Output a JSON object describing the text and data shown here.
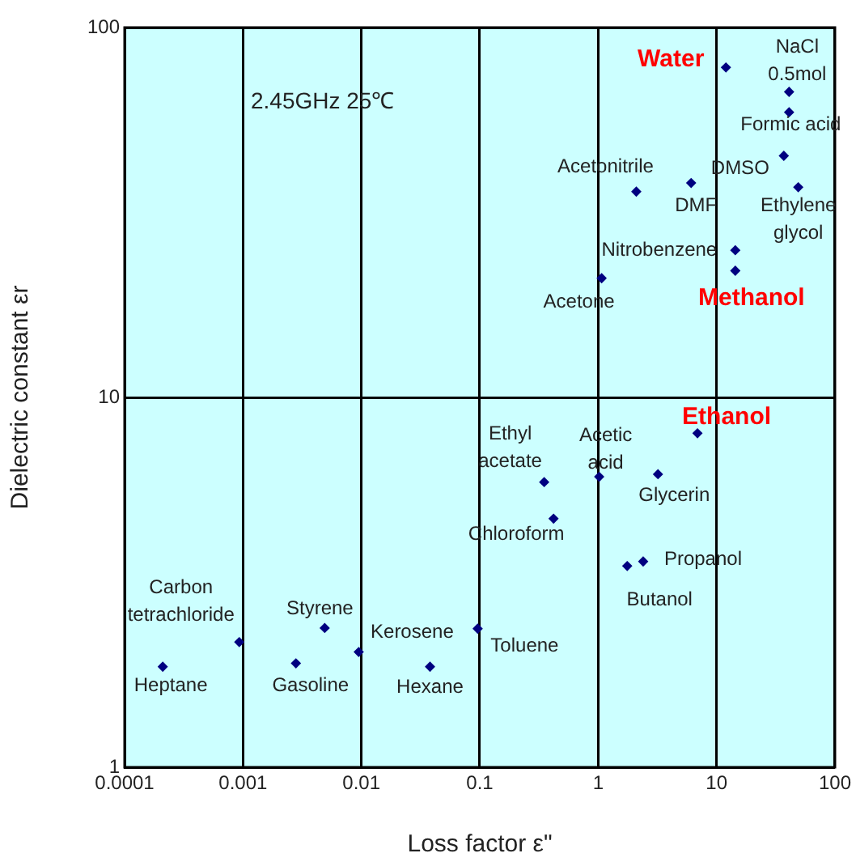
{
  "chart_data": {
    "type": "scatter",
    "xlabel": "Loss factor ε\"",
    "ylabel": "Dielectric constant εr",
    "log": "xy",
    "grid": true,
    "legend": false,
    "marker": "diamond",
    "xlim": [
      0.0001,
      100
    ],
    "xticks": [
      0.0001,
      0.001,
      0.01,
      0.1,
      1,
      10,
      100
    ],
    "ylim": [
      1,
      100
    ],
    "yticks": [
      1,
      10,
      100
    ],
    "annotations": [
      "2.45GHz 25℃"
    ],
    "series": [
      {
        "name": "Heptane",
        "color": "#000080",
        "x": [
          0.00021
        ],
        "values": [
          1.87
        ]
      },
      {
        "name": "Carbon tetrachloride",
        "color": "#000080",
        "x": [
          0.00093
        ],
        "values": [
          2.18
        ]
      },
      {
        "name": "Gasoline",
        "color": "#000080",
        "x": [
          0.0028
        ],
        "values": [
          1.91
        ]
      },
      {
        "name": "Styrene",
        "color": "#000080",
        "x": [
          0.0049
        ],
        "values": [
          2.38
        ]
      },
      {
        "name": "Kerosene",
        "color": "#000080",
        "x": [
          0.0095
        ],
        "values": [
          2.05
        ]
      },
      {
        "name": "Hexane",
        "color": "#000080",
        "x": [
          0.038
        ],
        "values": [
          1.87
        ]
      },
      {
        "name": "Toluene",
        "color": "#000080",
        "x": [
          0.096
        ],
        "values": [
          2.37
        ]
      },
      {
        "name": "Chloroform",
        "color": "#000080",
        "x": [
          0.42
        ],
        "values": [
          4.7
        ]
      },
      {
        "name": "Ethyl acetate",
        "color": "#000080",
        "x": [
          0.35
        ],
        "values": [
          5.9
        ]
      },
      {
        "name": "Acetic acid",
        "color": "#000080",
        "x": [
          1.02
        ],
        "values": [
          6.1
        ]
      },
      {
        "name": "Glycerin",
        "color": "#000080",
        "x": [
          3.2
        ],
        "values": [
          6.2
        ]
      },
      {
        "name": "Ethanol",
        "color": "#000080",
        "x": [
          6.9
        ],
        "values": [
          8.0
        ]
      },
      {
        "name": "Butanol",
        "color": "#000080",
        "x": [
          1.76
        ],
        "values": [
          3.5
        ]
      },
      {
        "name": "Propanol",
        "color": "#000080",
        "x": [
          2.4
        ],
        "values": [
          3.6
        ]
      },
      {
        "name": "Water",
        "color": "#000080",
        "x": [
          12
        ],
        "values": [
          78
        ]
      },
      {
        "name": "NaCl 0.5mol",
        "color": "#000080",
        "x": [
          41
        ],
        "values": [
          67
        ]
      },
      {
        "name": "Formic acid",
        "color": "#000080",
        "x": [
          41
        ],
        "values": [
          59
        ]
      },
      {
        "name": "DMSO",
        "color": "#000080",
        "x": [
          37
        ],
        "values": [
          45
        ]
      },
      {
        "name": "Ethylene glycol",
        "color": "#000080",
        "x": [
          49
        ],
        "values": [
          37
        ]
      },
      {
        "name": "DMF",
        "color": "#000080",
        "x": [
          6.1
        ],
        "values": [
          38
        ]
      },
      {
        "name": "Acetonitrile",
        "color": "#000080",
        "x": [
          2.1
        ],
        "values": [
          36
        ]
      },
      {
        "name": "Nitrobenzene",
        "color": "#000080",
        "x": [
          14.4
        ],
        "values": [
          25
        ]
      },
      {
        "name": "Methanol",
        "color": "#000080",
        "x": [
          14.4
        ],
        "values": [
          22
        ]
      },
      {
        "name": "Acetone",
        "color": "#000080",
        "x": [
          1.07
        ],
        "values": [
          21
        ]
      }
    ]
  }
}
